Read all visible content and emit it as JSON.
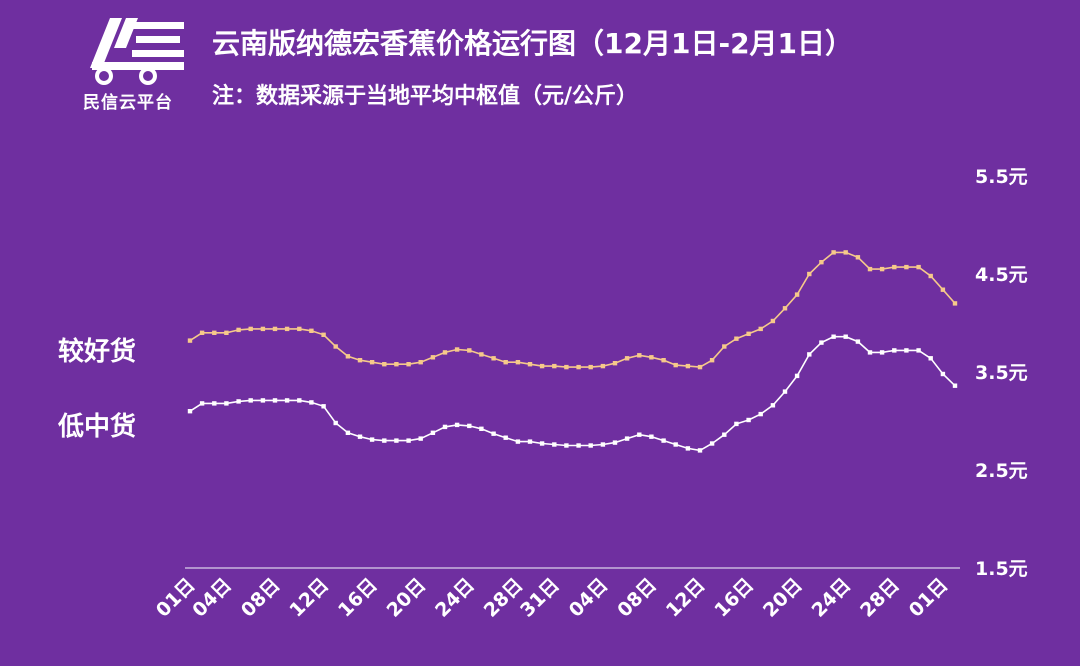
{
  "brand": {
    "name": "民信云平台",
    "logo_icon": "truck-logo-icon"
  },
  "chart_data": {
    "type": "line",
    "title": "云南版纳德宏香蕉价格运行图（12月1日-2月1日）",
    "subtitle": "注：数据采源于当地平均中枢值（元/公斤）",
    "ylim": [
      1.5,
      5.5
    ],
    "y_ticks": [
      "5.5元",
      "4.5元",
      "3.5元",
      "2.5元",
      "1.5元"
    ],
    "y_tick_values": [
      5.5,
      4.5,
      3.5,
      2.5,
      1.5
    ],
    "x_tick_labels": [
      "01日",
      "04日",
      "08日",
      "12日",
      "16日",
      "20日",
      "24日",
      "28日",
      "31日",
      "04日",
      "08日",
      "12日",
      "16日",
      "20日",
      "24日",
      "28日",
      "01日"
    ],
    "x_tick_indices": [
      0,
      3,
      7,
      11,
      15,
      19,
      23,
      27,
      30,
      34,
      38,
      42,
      46,
      50,
      54,
      58,
      62
    ],
    "grid": false,
    "series": [
      {
        "name": "较好货",
        "color": "#f6c98a",
        "values": [
          3.82,
          3.9,
          3.9,
          3.9,
          3.93,
          3.94,
          3.94,
          3.94,
          3.94,
          3.94,
          3.92,
          3.88,
          3.76,
          3.66,
          3.62,
          3.6,
          3.58,
          3.58,
          3.58,
          3.6,
          3.65,
          3.7,
          3.73,
          3.72,
          3.68,
          3.64,
          3.6,
          3.6,
          3.58,
          3.56,
          3.56,
          3.55,
          3.55,
          3.55,
          3.56,
          3.59,
          3.64,
          3.67,
          3.65,
          3.62,
          3.57,
          3.56,
          3.55,
          3.62,
          3.76,
          3.84,
          3.89,
          3.94,
          4.02,
          4.15,
          4.29,
          4.5,
          4.62,
          4.72,
          4.72,
          4.67,
          4.55,
          4.55,
          4.57,
          4.57,
          4.57,
          4.48,
          4.34,
          4.2
        ]
      },
      {
        "name": "低中货",
        "color": "#ffffff",
        "values": [
          3.1,
          3.18,
          3.18,
          3.18,
          3.2,
          3.21,
          3.21,
          3.21,
          3.21,
          3.21,
          3.19,
          3.15,
          2.98,
          2.88,
          2.84,
          2.81,
          2.8,
          2.8,
          2.8,
          2.82,
          2.88,
          2.94,
          2.96,
          2.95,
          2.92,
          2.87,
          2.83,
          2.79,
          2.79,
          2.77,
          2.76,
          2.75,
          2.75,
          2.75,
          2.76,
          2.78,
          2.82,
          2.86,
          2.84,
          2.8,
          2.76,
          2.72,
          2.7,
          2.77,
          2.86,
          2.97,
          3.01,
          3.07,
          3.16,
          3.3,
          3.46,
          3.68,
          3.8,
          3.86,
          3.86,
          3.81,
          3.7,
          3.7,
          3.72,
          3.72,
          3.72,
          3.64,
          3.48,
          3.36
        ]
      }
    ]
  }
}
